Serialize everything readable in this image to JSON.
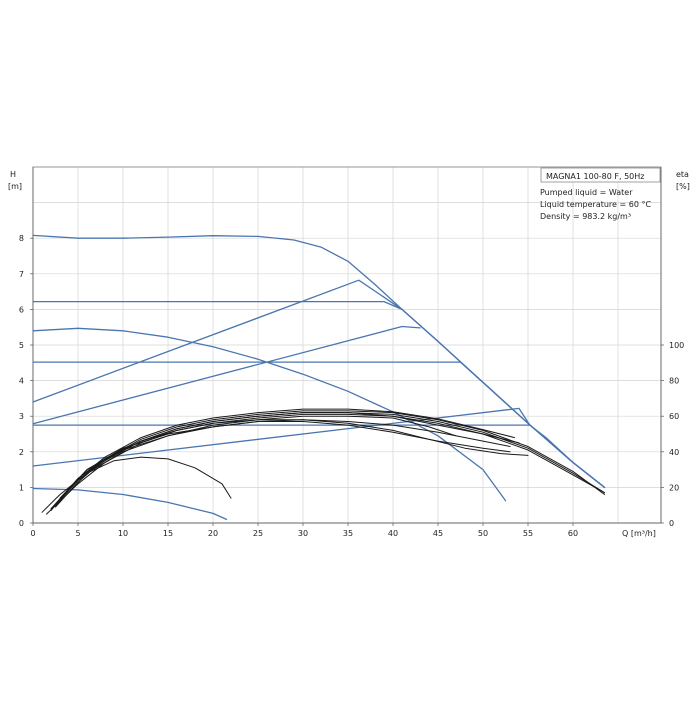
{
  "chart_data": {
    "type": "line",
    "x_axis_label": "Q [m³/h]",
    "y_axis_left_label_line1": "H",
    "y_axis_left_label_line2": "[m]",
    "y_axis_right_label_line1": "eta",
    "y_axis_right_label_line2": "[%]",
    "xlim": [
      0,
      70
    ],
    "ylim": [
      0,
      9
    ],
    "eta_lim": [
      0,
      120
    ],
    "grid": true,
    "x_ticks": [
      0,
      5,
      10,
      15,
      20,
      25,
      30,
      35,
      40,
      45,
      50,
      55,
      60
    ],
    "y_ticks": [
      0,
      1,
      2,
      3,
      4,
      5,
      6,
      7,
      8
    ],
    "eta_ticks": [
      0,
      20,
      40,
      60,
      80,
      100
    ],
    "legend": {
      "title": "MAGNA1 100-80 F, 50Hz",
      "lines": [
        "Pumped liquid = Water",
        "Liquid temperature = 60 °C",
        "Density = 983.2 kg/m³"
      ]
    },
    "colors": {
      "qh": "#4a76b0",
      "efficiency": "#1a1a1a",
      "frame": "#8a8a8a",
      "grid": "#d4d4d4"
    },
    "qh_curves": [
      {
        "points": [
          [
            0,
            8.08
          ],
          [
            5,
            8.0
          ],
          [
            10,
            8.0
          ],
          [
            15,
            8.03
          ],
          [
            20,
            8.07
          ],
          [
            25,
            8.05
          ],
          [
            29,
            7.95
          ],
          [
            32,
            7.75
          ],
          [
            35,
            7.35
          ],
          [
            38,
            6.7
          ],
          [
            41,
            6.0
          ],
          [
            45,
            5.1
          ],
          [
            50,
            3.95
          ],
          [
            55,
            2.8
          ],
          [
            60,
            1.7
          ],
          [
            63.5,
            1.0
          ]
        ]
      },
      {
        "points": [
          [
            0,
            6.22
          ],
          [
            39,
            6.22
          ],
          [
            41,
            6.0
          ],
          [
            45,
            5.1
          ],
          [
            50,
            3.95
          ],
          [
            55,
            2.8
          ],
          [
            60,
            1.7
          ],
          [
            63.5,
            1.0
          ]
        ]
      },
      {
        "points": [
          [
            0,
            4.52
          ],
          [
            47.5,
            4.52
          ],
          [
            50,
            3.95
          ],
          [
            55,
            2.8
          ],
          [
            60,
            1.7
          ],
          [
            63.5,
            1.0
          ]
        ]
      },
      {
        "points": [
          [
            0,
            2.75
          ],
          [
            55.2,
            2.75
          ],
          [
            57,
            2.4
          ],
          [
            60,
            1.7
          ],
          [
            63.5,
            1.0
          ]
        ]
      },
      {
        "points": [
          [
            0,
            5.4
          ],
          [
            5,
            5.47
          ],
          [
            10,
            5.4
          ],
          [
            15,
            5.22
          ],
          [
            20,
            4.95
          ],
          [
            25,
            4.6
          ],
          [
            30,
            4.18
          ],
          [
            35,
            3.7
          ],
          [
            40,
            3.12
          ],
          [
            45,
            2.45
          ],
          [
            50,
            1.5
          ],
          [
            52.5,
            0.63
          ]
        ]
      },
      {
        "points": [
          [
            0,
            0.97
          ],
          [
            5,
            0.93
          ],
          [
            10,
            0.8
          ],
          [
            15,
            0.58
          ],
          [
            20,
            0.27
          ],
          [
            21.5,
            0.1
          ]
        ]
      },
      {
        "points": [
          [
            0,
            3.4
          ],
          [
            36.2,
            6.82
          ],
          [
            41,
            6.0
          ]
        ]
      },
      {
        "points": [
          [
            0,
            2.79
          ],
          [
            41,
            5.52
          ],
          [
            43,
            5.48
          ]
        ]
      },
      {
        "points": [
          [
            0,
            1.6
          ],
          [
            54,
            3.22
          ],
          [
            55.2,
            2.75
          ]
        ]
      }
    ],
    "efficiency_curves": [
      {
        "points": [
          [
            2,
            8
          ],
          [
            5,
            24
          ],
          [
            8,
            35
          ],
          [
            12,
            46
          ],
          [
            16,
            53
          ],
          [
            20,
            57
          ],
          [
            25,
            60
          ],
          [
            30,
            62
          ],
          [
            35,
            62
          ],
          [
            40,
            61
          ],
          [
            45,
            57
          ],
          [
            50,
            51
          ],
          [
            55,
            42
          ],
          [
            60,
            28
          ],
          [
            63.5,
            17
          ]
        ]
      },
      {
        "points": [
          [
            2.5,
            9
          ],
          [
            5,
            23
          ],
          [
            8,
            36
          ],
          [
            12,
            47
          ],
          [
            16,
            54
          ],
          [
            20,
            58
          ],
          [
            25,
            61
          ],
          [
            30,
            63
          ],
          [
            35,
            63
          ],
          [
            40,
            62
          ],
          [
            45,
            58
          ],
          [
            50,
            52
          ],
          [
            55,
            43
          ],
          [
            60,
            29
          ],
          [
            63.5,
            16
          ]
        ]
      },
      {
        "points": [
          [
            1.5,
            5
          ],
          [
            5,
            22
          ],
          [
            8,
            34
          ],
          [
            12,
            45
          ],
          [
            16,
            52
          ],
          [
            20,
            56
          ],
          [
            25,
            59
          ],
          [
            30,
            61
          ],
          [
            35,
            61
          ],
          [
            40,
            60
          ],
          [
            45,
            56
          ],
          [
            50,
            50
          ],
          [
            55,
            41
          ],
          [
            60,
            27
          ],
          [
            63.5,
            17
          ]
        ]
      },
      {
        "points": [
          [
            2,
            7
          ],
          [
            5,
            25
          ],
          [
            8,
            37
          ],
          [
            12,
            48
          ],
          [
            16,
            55
          ],
          [
            20,
            59
          ],
          [
            25,
            62
          ],
          [
            30,
            64
          ],
          [
            35,
            64
          ],
          [
            40,
            62.5
          ],
          [
            45,
            58.5
          ],
          [
            50,
            52.5
          ],
          [
            53.5,
            48
          ]
        ]
      },
      {
        "points": [
          [
            2.5,
            10
          ],
          [
            5,
            24
          ],
          [
            8,
            36
          ],
          [
            12,
            46
          ],
          [
            16,
            52
          ],
          [
            20,
            56
          ],
          [
            25,
            58
          ],
          [
            30,
            58
          ],
          [
            35,
            56
          ],
          [
            40,
            52
          ],
          [
            44,
            47
          ],
          [
            48,
            42
          ],
          [
            52,
            39
          ],
          [
            55,
            38
          ]
        ]
      },
      {
        "points": [
          [
            2,
            8
          ],
          [
            5,
            25
          ],
          [
            8,
            36
          ],
          [
            12,
            46
          ],
          [
            16,
            53
          ],
          [
            20,
            57
          ],
          [
            25,
            60
          ],
          [
            30,
            62
          ],
          [
            35,
            62
          ],
          [
            40,
            60
          ],
          [
            45,
            55
          ],
          [
            50,
            50
          ],
          [
            54,
            45
          ]
        ]
      },
      {
        "points": [
          [
            3,
            12
          ],
          [
            6,
            28
          ],
          [
            10,
            40
          ],
          [
            15,
            49
          ],
          [
            20,
            54
          ],
          [
            25,
            57
          ],
          [
            30,
            57
          ],
          [
            35,
            55
          ],
          [
            40,
            51
          ],
          [
            45,
            46
          ],
          [
            50,
            42
          ],
          [
            53,
            40
          ]
        ]
      },
      {
        "points": [
          [
            1,
            6
          ],
          [
            3,
            16
          ],
          [
            6,
            28
          ],
          [
            9,
            35
          ],
          [
            12,
            37
          ],
          [
            15,
            36
          ],
          [
            18,
            31
          ],
          [
            21,
            22
          ],
          [
            22,
            14
          ]
        ]
      },
      {
        "points": [
          [
            2.5,
            10
          ],
          [
            6,
            30
          ],
          [
            10,
            42
          ],
          [
            15,
            50
          ],
          [
            20,
            54
          ],
          [
            25,
            57
          ],
          [
            30,
            58
          ],
          [
            35,
            57
          ],
          [
            40,
            55
          ],
          [
            45,
            51
          ],
          [
            50,
            46
          ],
          [
            53,
            43
          ]
        ]
      },
      {
        "points": [
          [
            3,
            14
          ],
          [
            6,
            30
          ],
          [
            10,
            41
          ],
          [
            15,
            49
          ],
          [
            20,
            55
          ],
          [
            25,
            58
          ],
          [
            30,
            60
          ],
          [
            35,
            60
          ],
          [
            40,
            59
          ],
          [
            44,
            54
          ],
          [
            47,
            49
          ]
        ]
      }
    ]
  }
}
